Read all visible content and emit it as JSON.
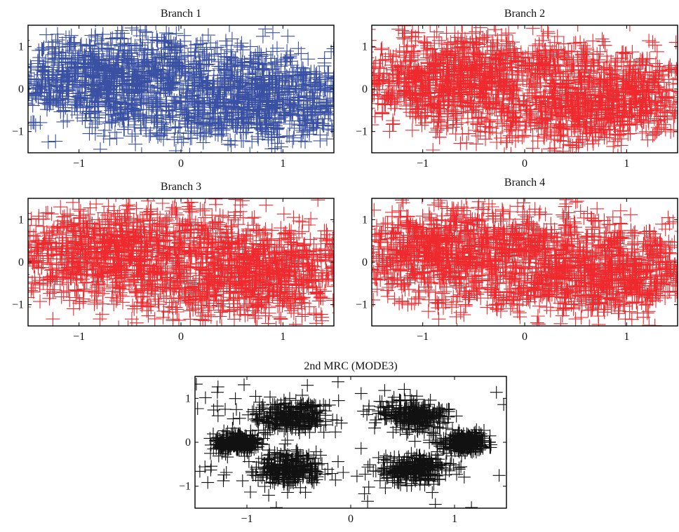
{
  "colors": {
    "blue": "#3a51a3",
    "red": "#ee2a2e",
    "black": "#111111"
  },
  "chart_data": [
    {
      "type": "scatter",
      "title": "Branch 1",
      "marker": "plus",
      "color": "#3a51a3",
      "xlim": [
        -1.5,
        1.5
      ],
      "ylim": [
        -1.5,
        1.5
      ],
      "xticks": [
        -1,
        0,
        1
      ],
      "yticks": [
        -1,
        0,
        1
      ],
      "xtick_labels": [
        "−1",
        "0",
        "1"
      ],
      "ytick_labels": [
        "−1",
        "0",
        "1"
      ],
      "clusters": [
        {
          "x": -0.85,
          "y": 0.45,
          "spread": 0.42
        },
        {
          "x": -0.35,
          "y": -0.45,
          "spread": 0.42
        },
        {
          "x": 0.35,
          "y": 0.45,
          "spread": 0.42
        },
        {
          "x": 0.85,
          "y": -0.45,
          "spread": 0.42
        },
        {
          "x": -1.1,
          "y": -0.05,
          "spread": 0.42
        },
        {
          "x": 1.1,
          "y": 0.05,
          "spread": 0.42
        },
        {
          "x": -0.55,
          "y": 0.6,
          "spread": 0.42
        },
        {
          "x": 0.55,
          "y": -0.6,
          "spread": 0.42
        }
      ],
      "points_per_cluster": 260,
      "grid": false
    },
    {
      "type": "scatter",
      "title": "Branch 2",
      "marker": "plus",
      "color": "#ee2a2e",
      "xlim": [
        -1.5,
        1.5
      ],
      "ylim": [
        -1.5,
        1.5
      ],
      "xticks": [
        -1,
        0,
        1
      ],
      "yticks": [
        -1,
        0,
        1
      ],
      "xtick_labels": [
        "−1",
        "0",
        "1"
      ],
      "ytick_labels": [
        "−1",
        "0",
        "1"
      ],
      "clusters": [
        {
          "x": -0.85,
          "y": 0.45,
          "spread": 0.42
        },
        {
          "x": -0.35,
          "y": -0.45,
          "spread": 0.42
        },
        {
          "x": 0.35,
          "y": 0.45,
          "spread": 0.42
        },
        {
          "x": 0.85,
          "y": -0.45,
          "spread": 0.42
        },
        {
          "x": -1.1,
          "y": -0.05,
          "spread": 0.42
        },
        {
          "x": 1.1,
          "y": 0.05,
          "spread": 0.42
        },
        {
          "x": -0.55,
          "y": 0.6,
          "spread": 0.42
        },
        {
          "x": 0.55,
          "y": -0.6,
          "spread": 0.42
        }
      ],
      "points_per_cluster": 260,
      "grid": false
    },
    {
      "type": "scatter",
      "title": "Branch 3",
      "marker": "plus",
      "color": "#ee2a2e",
      "xlim": [
        -1.5,
        1.5
      ],
      "ylim": [
        -1.5,
        1.5
      ],
      "xticks": [
        -1,
        0,
        1
      ],
      "yticks": [
        -1,
        0,
        1
      ],
      "xtick_labels": [
        "−1",
        "0",
        "1"
      ],
      "ytick_labels": [
        "−1",
        "0",
        "1"
      ],
      "clusters": [
        {
          "x": -0.85,
          "y": 0.45,
          "spread": 0.42
        },
        {
          "x": -0.35,
          "y": -0.45,
          "spread": 0.42
        },
        {
          "x": 0.35,
          "y": 0.45,
          "spread": 0.42
        },
        {
          "x": 0.85,
          "y": -0.45,
          "spread": 0.42
        },
        {
          "x": -1.1,
          "y": -0.05,
          "spread": 0.42
        },
        {
          "x": 1.1,
          "y": 0.05,
          "spread": 0.42
        },
        {
          "x": -0.55,
          "y": 0.6,
          "spread": 0.42
        },
        {
          "x": 0.55,
          "y": -0.6,
          "spread": 0.42
        }
      ],
      "points_per_cluster": 260,
      "grid": false
    },
    {
      "type": "scatter",
      "title": "Branch 4",
      "marker": "plus",
      "color": "#ee2a2e",
      "xlim": [
        -1.5,
        1.5
      ],
      "ylim": [
        -1.5,
        1.5
      ],
      "xticks": [
        -1,
        0,
        1
      ],
      "yticks": [
        -1,
        0,
        1
      ],
      "xtick_labels": [
        "−1",
        "0",
        "1"
      ],
      "ytick_labels": [
        "−1",
        "0",
        "1"
      ],
      "clusters": [
        {
          "x": -0.85,
          "y": 0.45,
          "spread": 0.42
        },
        {
          "x": -0.35,
          "y": -0.45,
          "spread": 0.42
        },
        {
          "x": 0.35,
          "y": 0.45,
          "spread": 0.42
        },
        {
          "x": 0.85,
          "y": -0.45,
          "spread": 0.42
        },
        {
          "x": -1.1,
          "y": -0.05,
          "spread": 0.42
        },
        {
          "x": 1.1,
          "y": 0.05,
          "spread": 0.42
        },
        {
          "x": -0.55,
          "y": 0.6,
          "spread": 0.42
        },
        {
          "x": 0.55,
          "y": -0.6,
          "spread": 0.42
        }
      ],
      "points_per_cluster": 260,
      "grid": false
    },
    {
      "type": "scatter",
      "title": "2nd MRC (MODE3)",
      "marker": "plus",
      "color": "#111111",
      "xlim": [
        -1.5,
        1.5
      ],
      "ylim": [
        -1.5,
        1.5
      ],
      "xticks": [
        -1,
        0,
        1
      ],
      "yticks": [
        -1,
        0,
        1
      ],
      "xtick_labels": [
        "−1",
        "0",
        "1"
      ],
      "ytick_labels": [
        "−1",
        "0",
        "1"
      ],
      "clusters": [
        {
          "x": -0.6,
          "y": 0.6,
          "spread": 0.17
        },
        {
          "x": 0.6,
          "y": 0.6,
          "spread": 0.17
        },
        {
          "x": -0.6,
          "y": -0.6,
          "spread": 0.17
        },
        {
          "x": 0.6,
          "y": -0.6,
          "spread": 0.17
        },
        {
          "x": -1.1,
          "y": 0.0,
          "spread": 0.11
        },
        {
          "x": 1.1,
          "y": 0.0,
          "spread": 0.11
        }
      ],
      "points_per_cluster": 260,
      "outliers": 90,
      "grid": false
    }
  ]
}
